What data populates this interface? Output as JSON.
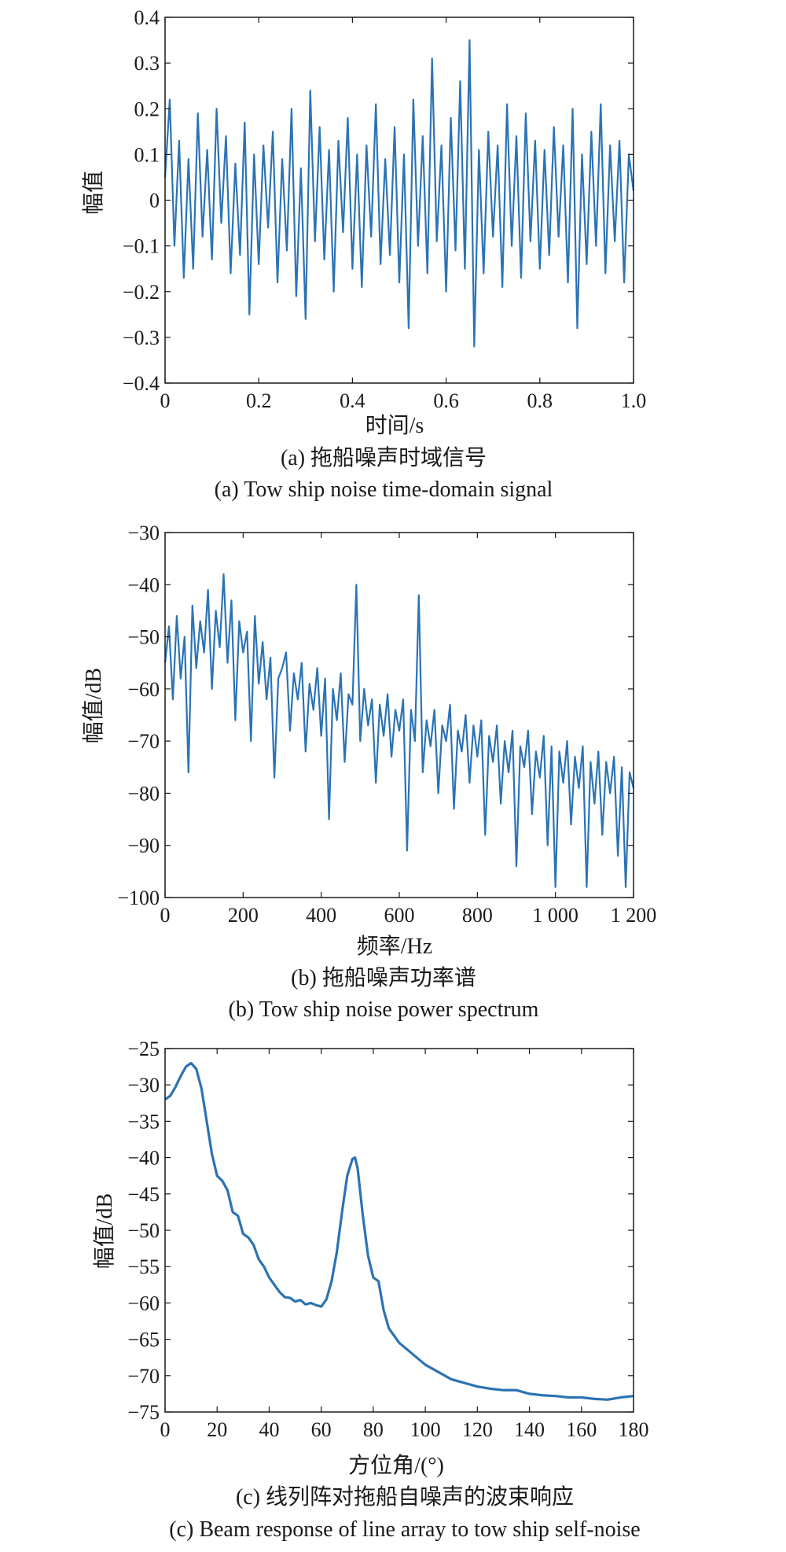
{
  "chart_data": [
    {
      "type": "line",
      "id": "a",
      "xlabel": "时间/s",
      "ylabel": "幅值",
      "caption_cn": "(a) 拖船噪声时域信号",
      "caption_en": "(a) Tow ship noise time-domain signal",
      "xlim": [
        0,
        1.0
      ],
      "ylim": [
        -0.4,
        0.4
      ],
      "xticks": [
        0,
        0.2,
        0.4,
        0.6,
        0.8,
        1.0
      ],
      "xtick_labels": [
        "0",
        "0.2",
        "0.4",
        "0.6",
        "0.8",
        "1.0"
      ],
      "yticks": [
        -0.4,
        -0.3,
        -0.2,
        -0.1,
        0,
        0.1,
        0.2,
        0.3,
        0.4
      ],
      "ytick_labels": [
        "−0.4",
        "−0.3",
        "−0.2",
        "−0.1",
        "0",
        "0.1",
        "0.2",
        "0.3",
        "0.4"
      ],
      "grid": false,
      "series": [
        {
          "color": "#2b73b4",
          "x": [
            0,
            0.01,
            0.02,
            0.03,
            0.04,
            0.05,
            0.06,
            0.07,
            0.08,
            0.09,
            0.1,
            0.11,
            0.12,
            0.13,
            0.14,
            0.15,
            0.16,
            0.17,
            0.18,
            0.19,
            0.2,
            0.21,
            0.22,
            0.23,
            0.24,
            0.25,
            0.26,
            0.27,
            0.28,
            0.29,
            0.3,
            0.31,
            0.32,
            0.33,
            0.34,
            0.35,
            0.36,
            0.37,
            0.38,
            0.39,
            0.4,
            0.41,
            0.42,
            0.43,
            0.44,
            0.45,
            0.46,
            0.47,
            0.48,
            0.49,
            0.5,
            0.51,
            0.52,
            0.53,
            0.54,
            0.55,
            0.56,
            0.57,
            0.58,
            0.59,
            0.6,
            0.61,
            0.62,
            0.63,
            0.64,
            0.65,
            0.66,
            0.67,
            0.68,
            0.69,
            0.7,
            0.71,
            0.72,
            0.73,
            0.74,
            0.75,
            0.76,
            0.77,
            0.78,
            0.79,
            0.8,
            0.81,
            0.82,
            0.83,
            0.84,
            0.85,
            0.86,
            0.87,
            0.88,
            0.89,
            0.9,
            0.91,
            0.92,
            0.93,
            0.94,
            0.95,
            0.96,
            0.97,
            0.98,
            0.99,
            1.0
          ],
          "y": [
            0.05,
            0.22,
            -0.1,
            0.13,
            -0.17,
            0.09,
            -0.15,
            0.19,
            -0.08,
            0.11,
            -0.13,
            0.2,
            -0.05,
            0.14,
            -0.16,
            0.08,
            -0.12,
            0.17,
            -0.25,
            0.1,
            -0.14,
            0.12,
            -0.06,
            0.15,
            -0.18,
            0.09,
            -0.11,
            0.2,
            -0.21,
            0.07,
            -0.26,
            0.24,
            -0.09,
            0.16,
            -0.13,
            0.11,
            -0.2,
            0.13,
            -0.07,
            0.18,
            -0.15,
            0.1,
            -0.19,
            0.12,
            -0.08,
            0.21,
            -0.14,
            0.09,
            -0.12,
            0.16,
            -0.18,
            0.1,
            -0.28,
            0.22,
            -0.1,
            0.14,
            -0.16,
            0.31,
            -0.09,
            0.12,
            -0.2,
            0.18,
            -0.11,
            0.26,
            -0.15,
            0.35,
            -0.32,
            0.11,
            -0.16,
            0.15,
            -0.08,
            0.12,
            -0.19,
            0.21,
            -0.1,
            0.14,
            -0.17,
            0.19,
            -0.09,
            0.13,
            -0.15,
            0.11,
            -0.12,
            0.16,
            -0.08,
            0.12,
            -0.18,
            0.2,
            -0.28,
            0.1,
            -0.14,
            0.15,
            -0.1,
            0.21,
            -0.16,
            0.12,
            -0.09,
            0.13,
            -0.18,
            0.1,
            0.02
          ]
        }
      ]
    },
    {
      "type": "line",
      "id": "b",
      "xlabel": "频率/Hz",
      "ylabel": "幅值/dB",
      "caption_cn": "(b) 拖船噪声功率谱",
      "caption_en": "(b) Tow ship noise power spectrum",
      "xlim": [
        0,
        1200
      ],
      "ylim": [
        -100,
        -30
      ],
      "xticks": [
        0,
        200,
        400,
        600,
        800,
        1000,
        1200
      ],
      "xtick_labels": [
        "0",
        "200",
        "400",
        "600",
        "800",
        "1 000",
        "1 200"
      ],
      "yticks": [
        -100,
        -90,
        -80,
        -70,
        -60,
        -50,
        -40,
        -30
      ],
      "ytick_labels": [
        "−100",
        "−90",
        "−80",
        "−70",
        "−60",
        "−50",
        "−40",
        "−30"
      ],
      "grid": false,
      "series": [
        {
          "color": "#2b73b4",
          "x": [
            0,
            10,
            20,
            30,
            40,
            50,
            60,
            70,
            80,
            90,
            100,
            110,
            120,
            130,
            140,
            150,
            160,
            170,
            180,
            190,
            200,
            210,
            220,
            230,
            240,
            250,
            260,
            270,
            280,
            290,
            300,
            310,
            320,
            330,
            340,
            350,
            360,
            370,
            380,
            390,
            400,
            410,
            420,
            430,
            440,
            450,
            460,
            470,
            480,
            490,
            500,
            510,
            520,
            530,
            540,
            550,
            560,
            570,
            580,
            590,
            600,
            610,
            620,
            630,
            640,
            650,
            660,
            670,
            680,
            690,
            700,
            710,
            720,
            730,
            740,
            750,
            760,
            770,
            780,
            790,
            800,
            810,
            820,
            830,
            840,
            850,
            860,
            870,
            880,
            890,
            900,
            910,
            920,
            930,
            940,
            950,
            960,
            970,
            980,
            990,
            1000,
            1010,
            1020,
            1030,
            1040,
            1050,
            1060,
            1070,
            1080,
            1090,
            1100,
            1110,
            1120,
            1130,
            1140,
            1150,
            1160,
            1170,
            1180,
            1190,
            1200
          ],
          "y": [
            -55,
            -48,
            -62,
            -46,
            -58,
            -50,
            -76,
            -44,
            -56,
            -47,
            -53,
            -41,
            -60,
            -45,
            -52,
            -38,
            -55,
            -43,
            -66,
            -47,
            -53,
            -49,
            -70,
            -46,
            -59,
            -51,
            -62,
            -54,
            -77,
            -58,
            -56,
            -53,
            -68,
            -57,
            -62,
            -55,
            -72,
            -59,
            -64,
            -56,
            -69,
            -58,
            -85,
            -60,
            -66,
            -57,
            -74,
            -61,
            -63,
            -40,
            -70,
            -60,
            -67,
            -62,
            -78,
            -63,
            -69,
            -61,
            -73,
            -64,
            -68,
            -62,
            -91,
            -64,
            -70,
            -42,
            -76,
            -66,
            -71,
            -64,
            -80,
            -67,
            -70,
            -63,
            -83,
            -68,
            -72,
            -65,
            -78,
            -67,
            -73,
            -66,
            -88,
            -69,
            -74,
            -67,
            -82,
            -70,
            -76,
            -68,
            -94,
            -71,
            -75,
            -68,
            -84,
            -72,
            -77,
            -69,
            -90,
            -71,
            -98,
            -72,
            -78,
            -70,
            -86,
            -73,
            -79,
            -71,
            -98,
            -74,
            -82,
            -72,
            -88,
            -74,
            -80,
            -73,
            -92,
            -75,
            -98,
            -76,
            -79
          ]
        }
      ]
    },
    {
      "type": "line",
      "id": "c",
      "xlabel": "方位角/(°)",
      "ylabel": "幅值/dB",
      "caption_cn": "(c) 线列阵对拖船自噪声的波束响应",
      "caption_en": "(c) Beam response of line array to tow ship self-noise",
      "xlim": [
        0,
        180
      ],
      "ylim": [
        -75,
        -25
      ],
      "xticks": [
        0,
        20,
        40,
        60,
        80,
        100,
        120,
        140,
        160,
        180
      ],
      "xtick_labels": [
        "0",
        "20",
        "40",
        "60",
        "80",
        "100",
        "120",
        "140",
        "160",
        "180"
      ],
      "yticks": [
        -75,
        -70,
        -65,
        -60,
        -55,
        -50,
        -45,
        -40,
        -35,
        -30,
        -25
      ],
      "ytick_labels": [
        "−75",
        "−70",
        "−65",
        "−60",
        "−55",
        "−50",
        "−45",
        "−40",
        "−35",
        "−30",
        "−25"
      ],
      "grid": false,
      "series": [
        {
          "color": "#2b73b4",
          "x": [
            0,
            2,
            4,
            6,
            8,
            10,
            12,
            14,
            16,
            18,
            20,
            22,
            24,
            26,
            28,
            30,
            32,
            34,
            36,
            38,
            40,
            42,
            44,
            46,
            48,
            50,
            52,
            54,
            56,
            58,
            60,
            62,
            64,
            66,
            68,
            70,
            72,
            73,
            74,
            76,
            78,
            80,
            82,
            84,
            86,
            88,
            90,
            95,
            100,
            105,
            110,
            115,
            120,
            125,
            130,
            135,
            140,
            145,
            150,
            155,
            160,
            165,
            170,
            175,
            180
          ],
          "y": [
            -32,
            -31.5,
            -30.3,
            -28.8,
            -27.5,
            -27,
            -27.8,
            -30.5,
            -35,
            -39.5,
            -42.5,
            -43.2,
            -44.5,
            -47.5,
            -48,
            -50.5,
            -51,
            -52,
            -54,
            -55,
            -56.5,
            -57.5,
            -58.5,
            -59.2,
            -59.3,
            -59.8,
            -59.6,
            -60.2,
            -60,
            -60.3,
            -60.5,
            -59.5,
            -57,
            -53,
            -47.5,
            -42.5,
            -40.2,
            -40,
            -41.5,
            -48,
            -53.5,
            -56.5,
            -57,
            -61,
            -63.5,
            -64.5,
            -65.5,
            -67,
            -68.5,
            -69.5,
            -70.5,
            -71,
            -71.5,
            -71.8,
            -72,
            -72,
            -72.5,
            -72.7,
            -72.8,
            -73,
            -73,
            -73.2,
            -73.3,
            -73,
            -72.8
          ]
        }
      ]
    }
  ]
}
